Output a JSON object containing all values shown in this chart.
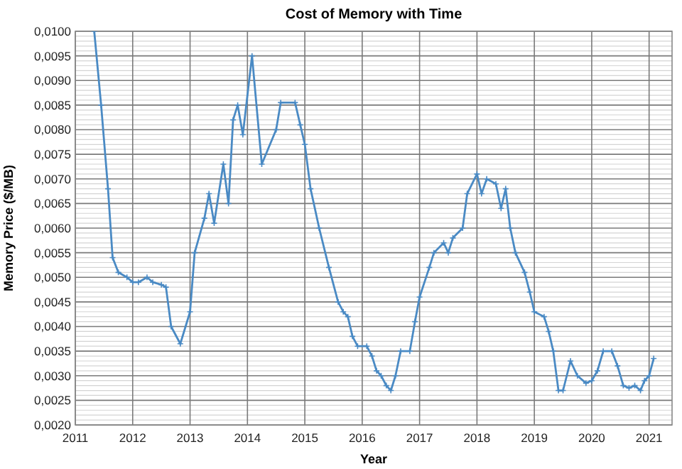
{
  "chart_data": {
    "type": "line",
    "title": "Cost of Memory with Time",
    "xlabel": "Year",
    "ylabel": "Memory Price ($/MB)",
    "x": [
      2011.33,
      2011.45,
      2011.57,
      2011.65,
      2011.75,
      2011.9,
      2012.0,
      2012.1,
      2012.25,
      2012.35,
      2012.5,
      2012.58,
      2012.67,
      2012.83,
      2013.0,
      2013.08,
      2013.25,
      2013.33,
      2013.42,
      2013.58,
      2013.67,
      2013.75,
      2013.83,
      2013.92,
      2014.08,
      2014.25,
      2014.5,
      2014.58,
      2014.83,
      2014.92,
      2015.0,
      2015.1,
      2015.25,
      2015.42,
      2015.58,
      2015.67,
      2015.75,
      2015.83,
      2015.92,
      2016.08,
      2016.17,
      2016.25,
      2016.33,
      2016.42,
      2016.5,
      2016.58,
      2016.67,
      2016.83,
      2016.92,
      2017.0,
      2017.17,
      2017.25,
      2017.42,
      2017.5,
      2017.58,
      2017.75,
      2017.83,
      2018.0,
      2018.08,
      2018.17,
      2018.33,
      2018.42,
      2018.5,
      2018.58,
      2018.67,
      2018.83,
      2018.92,
      2019.0,
      2019.17,
      2019.25,
      2019.33,
      2019.42,
      2019.5,
      2019.63,
      2019.75,
      2019.9,
      2020.0,
      2020.1,
      2020.2,
      2020.35,
      2020.45,
      2020.55,
      2020.65,
      2020.75,
      2020.85,
      2020.92,
      2021.0,
      2021.08
    ],
    "series": [
      {
        "color": "#4a8ac4",
        "values": [
          0.01,
          0.0085,
          0.0068,
          0.0054,
          0.0051,
          0.005,
          0.0049,
          0.0049,
          0.005,
          0.0049,
          0.00485,
          0.0048,
          0.004,
          0.00365,
          0.0043,
          0.0055,
          0.0062,
          0.0067,
          0.0061,
          0.0073,
          0.0065,
          0.0082,
          0.0085,
          0.0079,
          0.0095,
          0.0073,
          0.008,
          0.00855,
          0.00855,
          0.0081,
          0.0077,
          0.0068,
          0.006,
          0.0052,
          0.0045,
          0.0043,
          0.0042,
          0.0038,
          0.0036,
          0.0036,
          0.0034,
          0.0031,
          0.003,
          0.0028,
          0.0027,
          0.003,
          0.0035,
          0.0035,
          0.0041,
          0.0046,
          0.0052,
          0.0055,
          0.0057,
          0.0055,
          0.0058,
          0.006,
          0.0067,
          0.0071,
          0.0067,
          0.007,
          0.0069,
          0.0064,
          0.0068,
          0.006,
          0.0055,
          0.0051,
          0.0047,
          0.0043,
          0.0042,
          0.0039,
          0.0035,
          0.0027,
          0.0027,
          0.0033,
          0.003,
          0.00285,
          0.0029,
          0.0031,
          0.0035,
          0.0035,
          0.0032,
          0.0028,
          0.00275,
          0.0028,
          0.0027,
          0.0029,
          0.003,
          0.00335
        ]
      }
    ],
    "xlim": [
      2011,
      2021.4
    ],
    "xticks": [
      2011,
      2012,
      2013,
      2014,
      2015,
      2016,
      2017,
      2018,
      2019,
      2020,
      2021
    ],
    "ylim": [
      0.002,
      0.01
    ],
    "yticks": [
      {
        "value": 0.002,
        "label": "0,0020"
      },
      {
        "value": 0.0025,
        "label": "0,0025"
      },
      {
        "value": 0.003,
        "label": "0,0030"
      },
      {
        "value": 0.0035,
        "label": "0,0035"
      },
      {
        "value": 0.004,
        "label": "0,0040"
      },
      {
        "value": 0.0045,
        "label": "0,0045"
      },
      {
        "value": 0.005,
        "label": "0,0050"
      },
      {
        "value": 0.0055,
        "label": "0,0055"
      },
      {
        "value": 0.006,
        "label": "0,0060"
      },
      {
        "value": 0.0065,
        "label": "0,0065"
      },
      {
        "value": 0.007,
        "label": "0,0070"
      },
      {
        "value": 0.0075,
        "label": "0,0075"
      },
      {
        "value": 0.008,
        "label": "0,0080"
      },
      {
        "value": 0.0085,
        "label": "0,0085"
      },
      {
        "value": 0.009,
        "label": "0,0090"
      },
      {
        "value": 0.0095,
        "label": "0,0095"
      },
      {
        "value": 0.01,
        "label": "0,0100"
      }
    ],
    "grid": true,
    "marker": "cross",
    "line_style": "solid"
  }
}
